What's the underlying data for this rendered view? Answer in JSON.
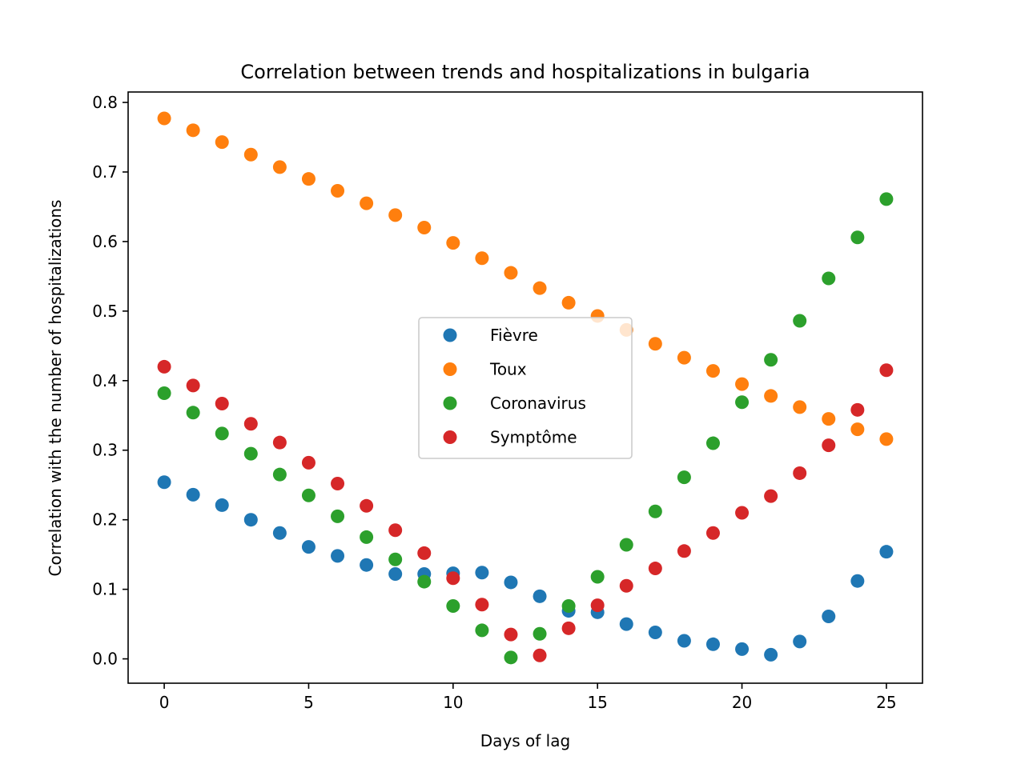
{
  "chart_data": {
    "type": "scatter",
    "title": "Correlation between trends and hospitalizations in bulgaria",
    "xlabel": "Days of lag",
    "ylabel": "Correlation with the number of hospitalizations",
    "xlim": [
      -1.25,
      26.25
    ],
    "ylim": [
      -0.035,
      0.815
    ],
    "xticks": [
      0,
      5,
      10,
      15,
      20,
      25
    ],
    "yticks": [
      0.0,
      0.1,
      0.2,
      0.3,
      0.4,
      0.5,
      0.6,
      0.7,
      0.8
    ],
    "grid": false,
    "legend_position": "center",
    "x": [
      0,
      1,
      2,
      3,
      4,
      5,
      6,
      7,
      8,
      9,
      10,
      11,
      12,
      13,
      14,
      15,
      16,
      17,
      18,
      19,
      20,
      21,
      22,
      23,
      24,
      25
    ],
    "series": [
      {
        "name": "Fièvre",
        "color": "#1f77b4",
        "values": [
          0.254,
          0.236,
          0.221,
          0.2,
          0.181,
          0.161,
          0.148,
          0.135,
          0.122,
          0.122,
          0.123,
          0.124,
          0.11,
          0.09,
          0.069,
          0.067,
          0.05,
          0.038,
          0.026,
          0.021,
          0.014,
          0.006,
          0.025,
          0.061,
          0.112,
          0.154
        ]
      },
      {
        "name": "Toux",
        "color": "#ff7f0e",
        "values": [
          0.777,
          0.76,
          0.743,
          0.725,
          0.707,
          0.69,
          0.673,
          0.655,
          0.638,
          0.62,
          0.598,
          0.576,
          0.555,
          0.533,
          0.512,
          0.493,
          0.473,
          0.453,
          0.433,
          0.414,
          0.395,
          0.378,
          0.362,
          0.345,
          0.33,
          0.316
        ]
      },
      {
        "name": "Coronavirus",
        "color": "#2ca02c",
        "values": [
          0.382,
          0.354,
          0.324,
          0.295,
          0.265,
          0.235,
          0.205,
          0.175,
          0.143,
          0.111,
          0.076,
          0.041,
          0.002,
          0.036,
          0.076,
          0.118,
          0.164,
          0.212,
          0.261,
          0.31,
          0.369,
          0.43,
          0.486,
          0.547,
          0.606,
          0.661
        ]
      },
      {
        "name": "Symptôme",
        "color": "#d62728",
        "values": [
          0.42,
          0.393,
          0.367,
          0.338,
          0.311,
          0.282,
          0.252,
          0.22,
          0.185,
          0.152,
          0.116,
          0.078,
          0.035,
          0.005,
          0.044,
          0.077,
          0.105,
          0.13,
          0.155,
          0.181,
          0.21,
          0.234,
          0.267,
          0.307,
          0.358,
          0.415
        ]
      }
    ]
  }
}
